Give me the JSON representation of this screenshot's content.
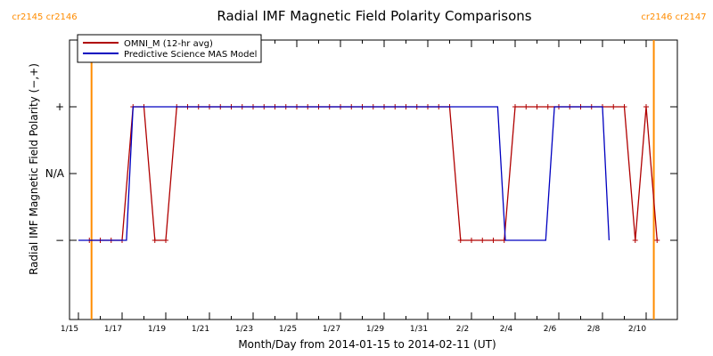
{
  "chart_data": {
    "type": "line",
    "title": "Radial IMF Magnetic Field Polarity Comparisons",
    "xlabel": "Month/Day from 2014-01-15 to 2014-02-11 (UT)",
    "ylabel": "Radial IMF Magnetic Field Polarity (−,+)",
    "x_range_days": [
      0,
      26.7
    ],
    "y_levels": [
      -1,
      0,
      1
    ],
    "y_tick_labels": [
      "−",
      "N/A",
      "+"
    ],
    "x_ticks": [
      {
        "day": 0,
        "label": "1/15"
      },
      {
        "day": 2,
        "label": "1/17"
      },
      {
        "day": 4,
        "label": "1/19"
      },
      {
        "day": 6,
        "label": "1/21"
      },
      {
        "day": 8,
        "label": "1/23"
      },
      {
        "day": 10,
        "label": "1/25"
      },
      {
        "day": 12,
        "label": "1/27"
      },
      {
        "day": 14,
        "label": "1/29"
      },
      {
        "day": 16,
        "label": "1/31"
      },
      {
        "day": 18,
        "label": "2/2"
      },
      {
        "day": 20,
        "label": "2/4"
      },
      {
        "day": 22,
        "label": "2/6"
      },
      {
        "day": 24,
        "label": "2/8"
      },
      {
        "day": 26,
        "label": "2/10"
      }
    ],
    "carrington_markers": [
      {
        "day": 0.6,
        "left_label": "cr2145",
        "right_label": "cr2146"
      },
      {
        "day": 26.35,
        "left_label": "cr2146",
        "right_label": "cr2147"
      }
    ],
    "grid": false,
    "legend_position": "top-left",
    "series": [
      {
        "name": "OMNI_M (12-hr avg)",
        "color": "#b00000",
        "points": [
          [
            0.5,
            -1
          ],
          [
            1,
            -1
          ],
          [
            1.5,
            -1
          ],
          [
            2,
            -1
          ],
          [
            2.5,
            1
          ],
          [
            3,
            1
          ],
          [
            3.5,
            -1
          ],
          [
            4,
            -1
          ],
          [
            4.5,
            1
          ],
          [
            5,
            1
          ],
          [
            5.5,
            1
          ],
          [
            6,
            1
          ],
          [
            6.5,
            1
          ],
          [
            7,
            1
          ],
          [
            7.5,
            1
          ],
          [
            8,
            1
          ],
          [
            8.5,
            1
          ],
          [
            9,
            1
          ],
          [
            9.5,
            1
          ],
          [
            10,
            1
          ],
          [
            10.5,
            1
          ],
          [
            11,
            1
          ],
          [
            11.5,
            1
          ],
          [
            12,
            1
          ],
          [
            12.5,
            1
          ],
          [
            13,
            1
          ],
          [
            13.5,
            1
          ],
          [
            14,
            1
          ],
          [
            14.5,
            1
          ],
          [
            15,
            1
          ],
          [
            15.5,
            1
          ],
          [
            16,
            1
          ],
          [
            16.5,
            1
          ],
          [
            17,
            1
          ],
          [
            17.5,
            -1
          ],
          [
            18,
            -1
          ],
          [
            18.5,
            -1
          ],
          [
            19,
            -1
          ],
          [
            19.5,
            -1
          ],
          [
            20,
            1
          ],
          [
            20.5,
            1
          ],
          [
            21,
            1
          ],
          [
            21.5,
            1
          ],
          [
            22,
            1
          ],
          [
            22.5,
            1
          ],
          [
            23,
            1
          ],
          [
            23.5,
            1
          ],
          [
            24,
            1
          ],
          [
            24.5,
            1
          ],
          [
            25,
            1
          ],
          [
            25.5,
            -1
          ],
          [
            26,
            1
          ],
          [
            26.5,
            -1
          ],
          [
            27,
            -1
          ],
          [
            27.5,
            1
          ],
          [
            28,
            1
          ],
          [
            28.5,
            -1
          ]
        ]
      },
      {
        "name": "Predictive Science MAS Model",
        "color": "#0000c0",
        "points": [
          [
            0,
            -1
          ],
          [
            2.2,
            -1
          ],
          [
            2.5,
            1
          ],
          [
            19.2,
            1
          ],
          [
            19.55,
            -1
          ],
          [
            21.4,
            -1
          ],
          [
            21.8,
            1
          ],
          [
            24.0,
            1
          ],
          [
            24.3,
            -1
          ],
          [
            26.8,
            -1
          ]
        ]
      }
    ]
  }
}
